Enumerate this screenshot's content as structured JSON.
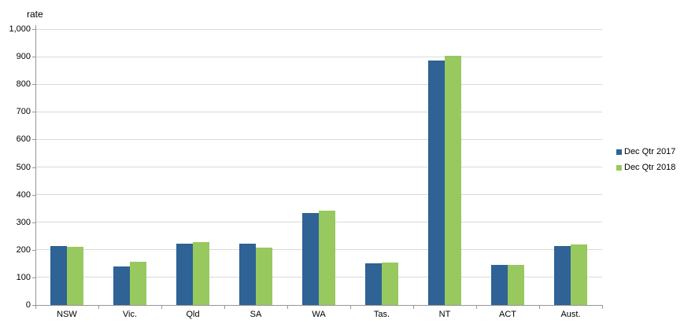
{
  "chart_data": {
    "type": "bar",
    "title": "",
    "ylabel": "rate",
    "xlabel": "",
    "categories": [
      "NSW",
      "Vic.",
      "Qld",
      "SA",
      "WA",
      "Tas.",
      "NT",
      "ACT",
      "Aust."
    ],
    "series": [
      {
        "name": "Dec Qtr 2017",
        "color": "#2f6295",
        "values": [
          215,
          141,
          222,
          222,
          333,
          151,
          886,
          146,
          215
        ]
      },
      {
        "name": "Dec Qtr 2018",
        "color": "#97c95e",
        "values": [
          211,
          157,
          229,
          208,
          343,
          155,
          904,
          146,
          218
        ]
      }
    ],
    "ylim": [
      0,
      1000
    ],
    "ytick_step": 100,
    "ytick_labels": [
      "0",
      "100",
      "200",
      "300",
      "400",
      "500",
      "600",
      "700",
      "800",
      "900",
      "1,000"
    ],
    "grid": true,
    "legend_position": "right",
    "colors": {
      "gridline": "#d9d9d9",
      "axis": "#969696",
      "text": "#000000",
      "background": "#ffffff"
    }
  }
}
